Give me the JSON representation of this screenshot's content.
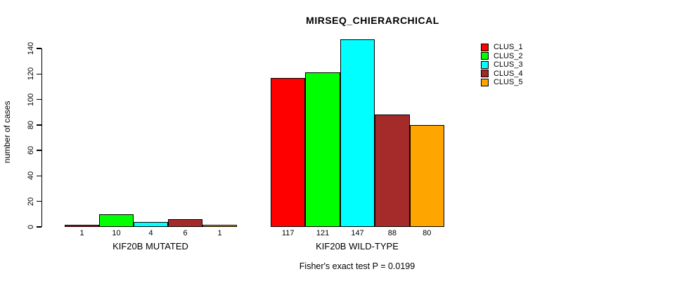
{
  "title": "MIRSEQ_CHIERARCHICAL",
  "footer": "Fisher's exact test P = 0.0199",
  "chart_data": {
    "type": "bar",
    "title": "MIRSEQ_CHIERARCHICAL",
    "xlabel": "",
    "ylabel": "number of cases",
    "ylim": [
      0,
      140
    ],
    "yticks": [
      0,
      20,
      40,
      60,
      80,
      100,
      120,
      140
    ],
    "grid": false,
    "legend_position": "top-right",
    "series": [
      {
        "name": "CLUS_1",
        "color": "#FF0000"
      },
      {
        "name": "CLUS_2",
        "color": "#00FF00"
      },
      {
        "name": "CLUS_3",
        "color": "#00FFFF"
      },
      {
        "name": "CLUS_4",
        "color": "#A52A2A"
      },
      {
        "name": "CLUS_5",
        "color": "#FFA500"
      }
    ],
    "groups": [
      {
        "label": "KIF20B MUTATED",
        "values": [
          1,
          10,
          4,
          6,
          1
        ]
      },
      {
        "label": "KIF20B WILD-TYPE",
        "values": [
          117,
          121,
          147,
          88,
          80
        ]
      }
    ],
    "annotation": "Fisher's exact test P = 0.0199"
  }
}
